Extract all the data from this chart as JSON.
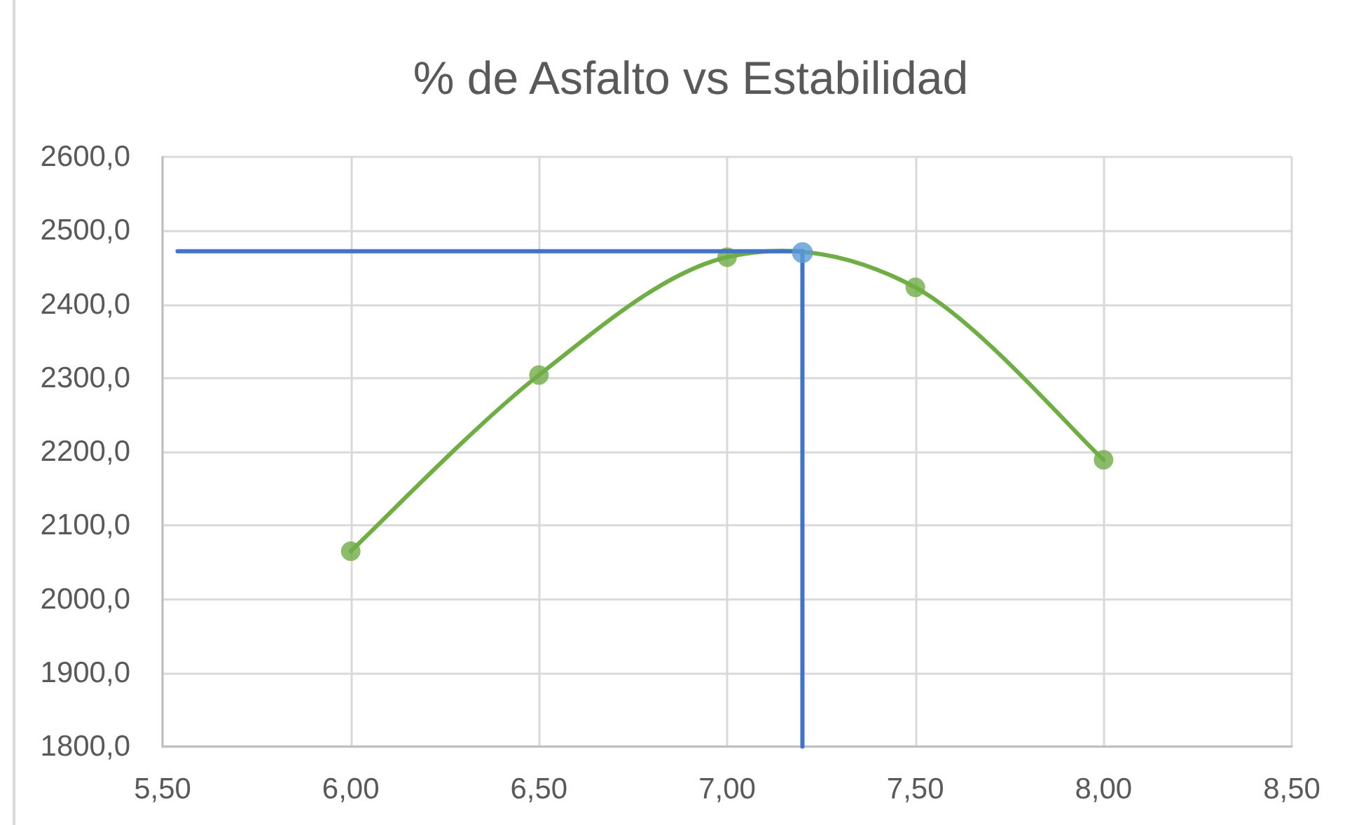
{
  "chart_data": {
    "type": "line",
    "title": "% de Asfalto vs Estabilidad",
    "series": [
      {
        "color": "#70ad47",
        "marker": "circle",
        "x": [
          6.0,
          6.5,
          7.0,
          7.5,
          8.0
        ],
        "values": [
          2065,
          2304,
          2464,
          2423,
          2189
        ]
      },
      {
        "color": "#4472c4",
        "marker": "none",
        "x": [
          5.54,
          7.2
        ],
        "values": [
          2472,
          2472
        ]
      },
      {
        "color": "#4472c4",
        "marker": "none",
        "x": [
          7.2,
          7.2
        ],
        "values": [
          2472,
          1800
        ]
      },
      {
        "type": "scatter",
        "color": "#5b9bd5",
        "marker": "circle",
        "x": [
          7.2
        ],
        "values": [
          2470
        ]
      }
    ],
    "xlim": [
      5.5,
      8.5
    ],
    "xticks": [
      {
        "value": 5.5,
        "label": "5,50"
      },
      {
        "value": 6.0,
        "label": "6,00"
      },
      {
        "value": 6.5,
        "label": "6,50"
      },
      {
        "value": 7.0,
        "label": "7,00"
      },
      {
        "value": 7.5,
        "label": "7,50"
      },
      {
        "value": 8.0,
        "label": "8,00"
      },
      {
        "value": 8.5,
        "label": "8,50"
      }
    ],
    "ylim": [
      1800,
      2600
    ],
    "yticks": [
      {
        "value": 1800,
        "label": "1800,0"
      },
      {
        "value": 1900,
        "label": "1900,0"
      },
      {
        "value": 2000,
        "label": "2000,0"
      },
      {
        "value": 2100,
        "label": "2100,0"
      },
      {
        "value": 2200,
        "label": "2200,0"
      },
      {
        "value": 2300,
        "label": "2300,0"
      },
      {
        "value": 2400,
        "label": "2400,0"
      },
      {
        "value": 2500,
        "label": "2500,0"
      },
      {
        "value": 2600,
        "label": "2600,0"
      }
    ],
    "grid": true
  }
}
